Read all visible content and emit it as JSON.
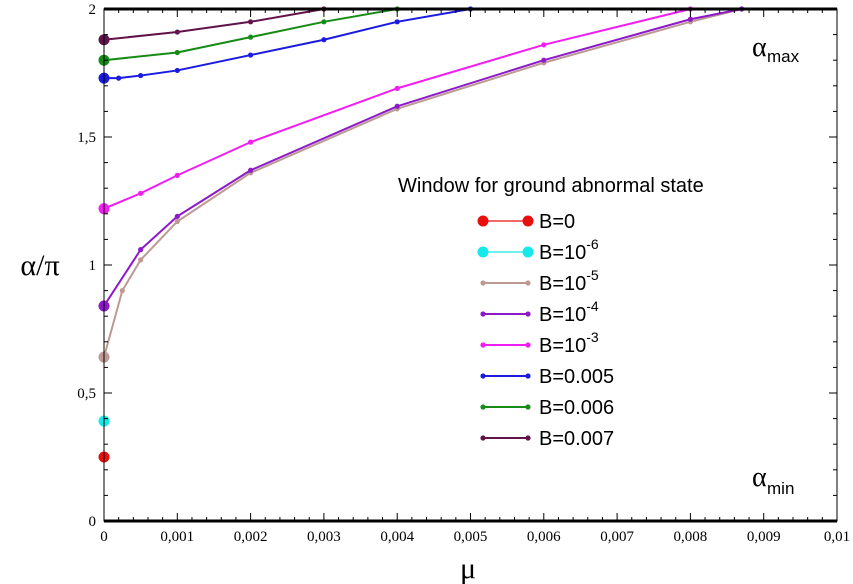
{
  "chart_data": {
    "type": "line",
    "title": "",
    "xlabel": "μ",
    "ylabel": "α/π",
    "xlim": [
      0,
      0.01
    ],
    "ylim": [
      0,
      2
    ],
    "x_ticks": [
      0,
      0.001,
      0.002,
      0.003,
      0.004,
      0.005,
      0.006,
      0.007,
      0.008,
      0.009,
      0.01
    ],
    "x_tick_labels": [
      "0",
      "0,001",
      "0,002",
      "0,003",
      "0,004",
      "0,005",
      "0,006",
      "0,007",
      "0,008",
      "0,009",
      "0,01"
    ],
    "y_ticks": [
      0,
      0.5,
      1,
      1.5,
      2
    ],
    "y_tick_labels": [
      "0",
      "0,5",
      "1",
      "1,5",
      "2"
    ],
    "grid": false,
    "legend": {
      "title": "Window for ground abnormal state",
      "placement": "center-right"
    },
    "annotations": [
      {
        "text": "α",
        "sub": "max"
      },
      {
        "text": "α",
        "sub": "min"
      }
    ],
    "series": [
      {
        "name": "B=0",
        "label_base": "B=0",
        "label_exp": "",
        "color": "#e8100c",
        "x": [
          0
        ],
        "y": [
          0.25
        ]
      },
      {
        "name": "B=10^-6",
        "label_base": "B=10",
        "label_exp": "-6",
        "color": "#17e8e8",
        "x": [
          0
        ],
        "y": [
          0.39
        ]
      },
      {
        "name": "B=10^-5",
        "label_base": "B=10",
        "label_exp": "-5",
        "color": "#bc9a93",
        "x": [
          0,
          0.00025,
          0.0005,
          0.001,
          0.002,
          0.004,
          0.006,
          0.008,
          0.0087
        ],
        "y": [
          0.64,
          0.9,
          1.02,
          1.17,
          1.36,
          1.61,
          1.79,
          1.95,
          2.0
        ]
      },
      {
        "name": "B=10^-4",
        "label_base": "B=10",
        "label_exp": "-4",
        "color": "#8e19c8",
        "x": [
          0,
          0.0005,
          0.001,
          0.002,
          0.004,
          0.006,
          0.008,
          0.0087
        ],
        "y": [
          0.84,
          1.06,
          1.19,
          1.37,
          1.62,
          1.8,
          1.96,
          2.0
        ]
      },
      {
        "name": "B=10^-3",
        "label_base": "B=10",
        "label_exp": "-3",
        "color": "#f21df2",
        "x": [
          0,
          0.0005,
          0.001,
          0.002,
          0.004,
          0.006,
          0.008
        ],
        "y": [
          1.22,
          1.28,
          1.35,
          1.48,
          1.69,
          1.86,
          2.0
        ]
      },
      {
        "name": "B=0.005",
        "label_base": "B=0.005",
        "label_exp": "",
        "color": "#1a1ae0",
        "x": [
          0,
          0.0002,
          0.0005,
          0.001,
          0.002,
          0.003,
          0.004,
          0.005
        ],
        "y": [
          1.73,
          1.73,
          1.74,
          1.76,
          1.82,
          1.88,
          1.95,
          2.0
        ]
      },
      {
        "name": "B=0.006",
        "label_base": "B=0.006",
        "label_exp": "",
        "color": "#168c16",
        "x": [
          0,
          0.001,
          0.002,
          0.003,
          0.004
        ],
        "y": [
          1.8,
          1.83,
          1.89,
          1.95,
          2.0
        ]
      },
      {
        "name": "B=0.007",
        "label_base": "B=0.007",
        "label_exp": "",
        "color": "#62134a",
        "x": [
          0,
          0.001,
          0.002,
          0.003
        ],
        "y": [
          1.88,
          1.91,
          1.95,
          2.0
        ]
      }
    ]
  }
}
